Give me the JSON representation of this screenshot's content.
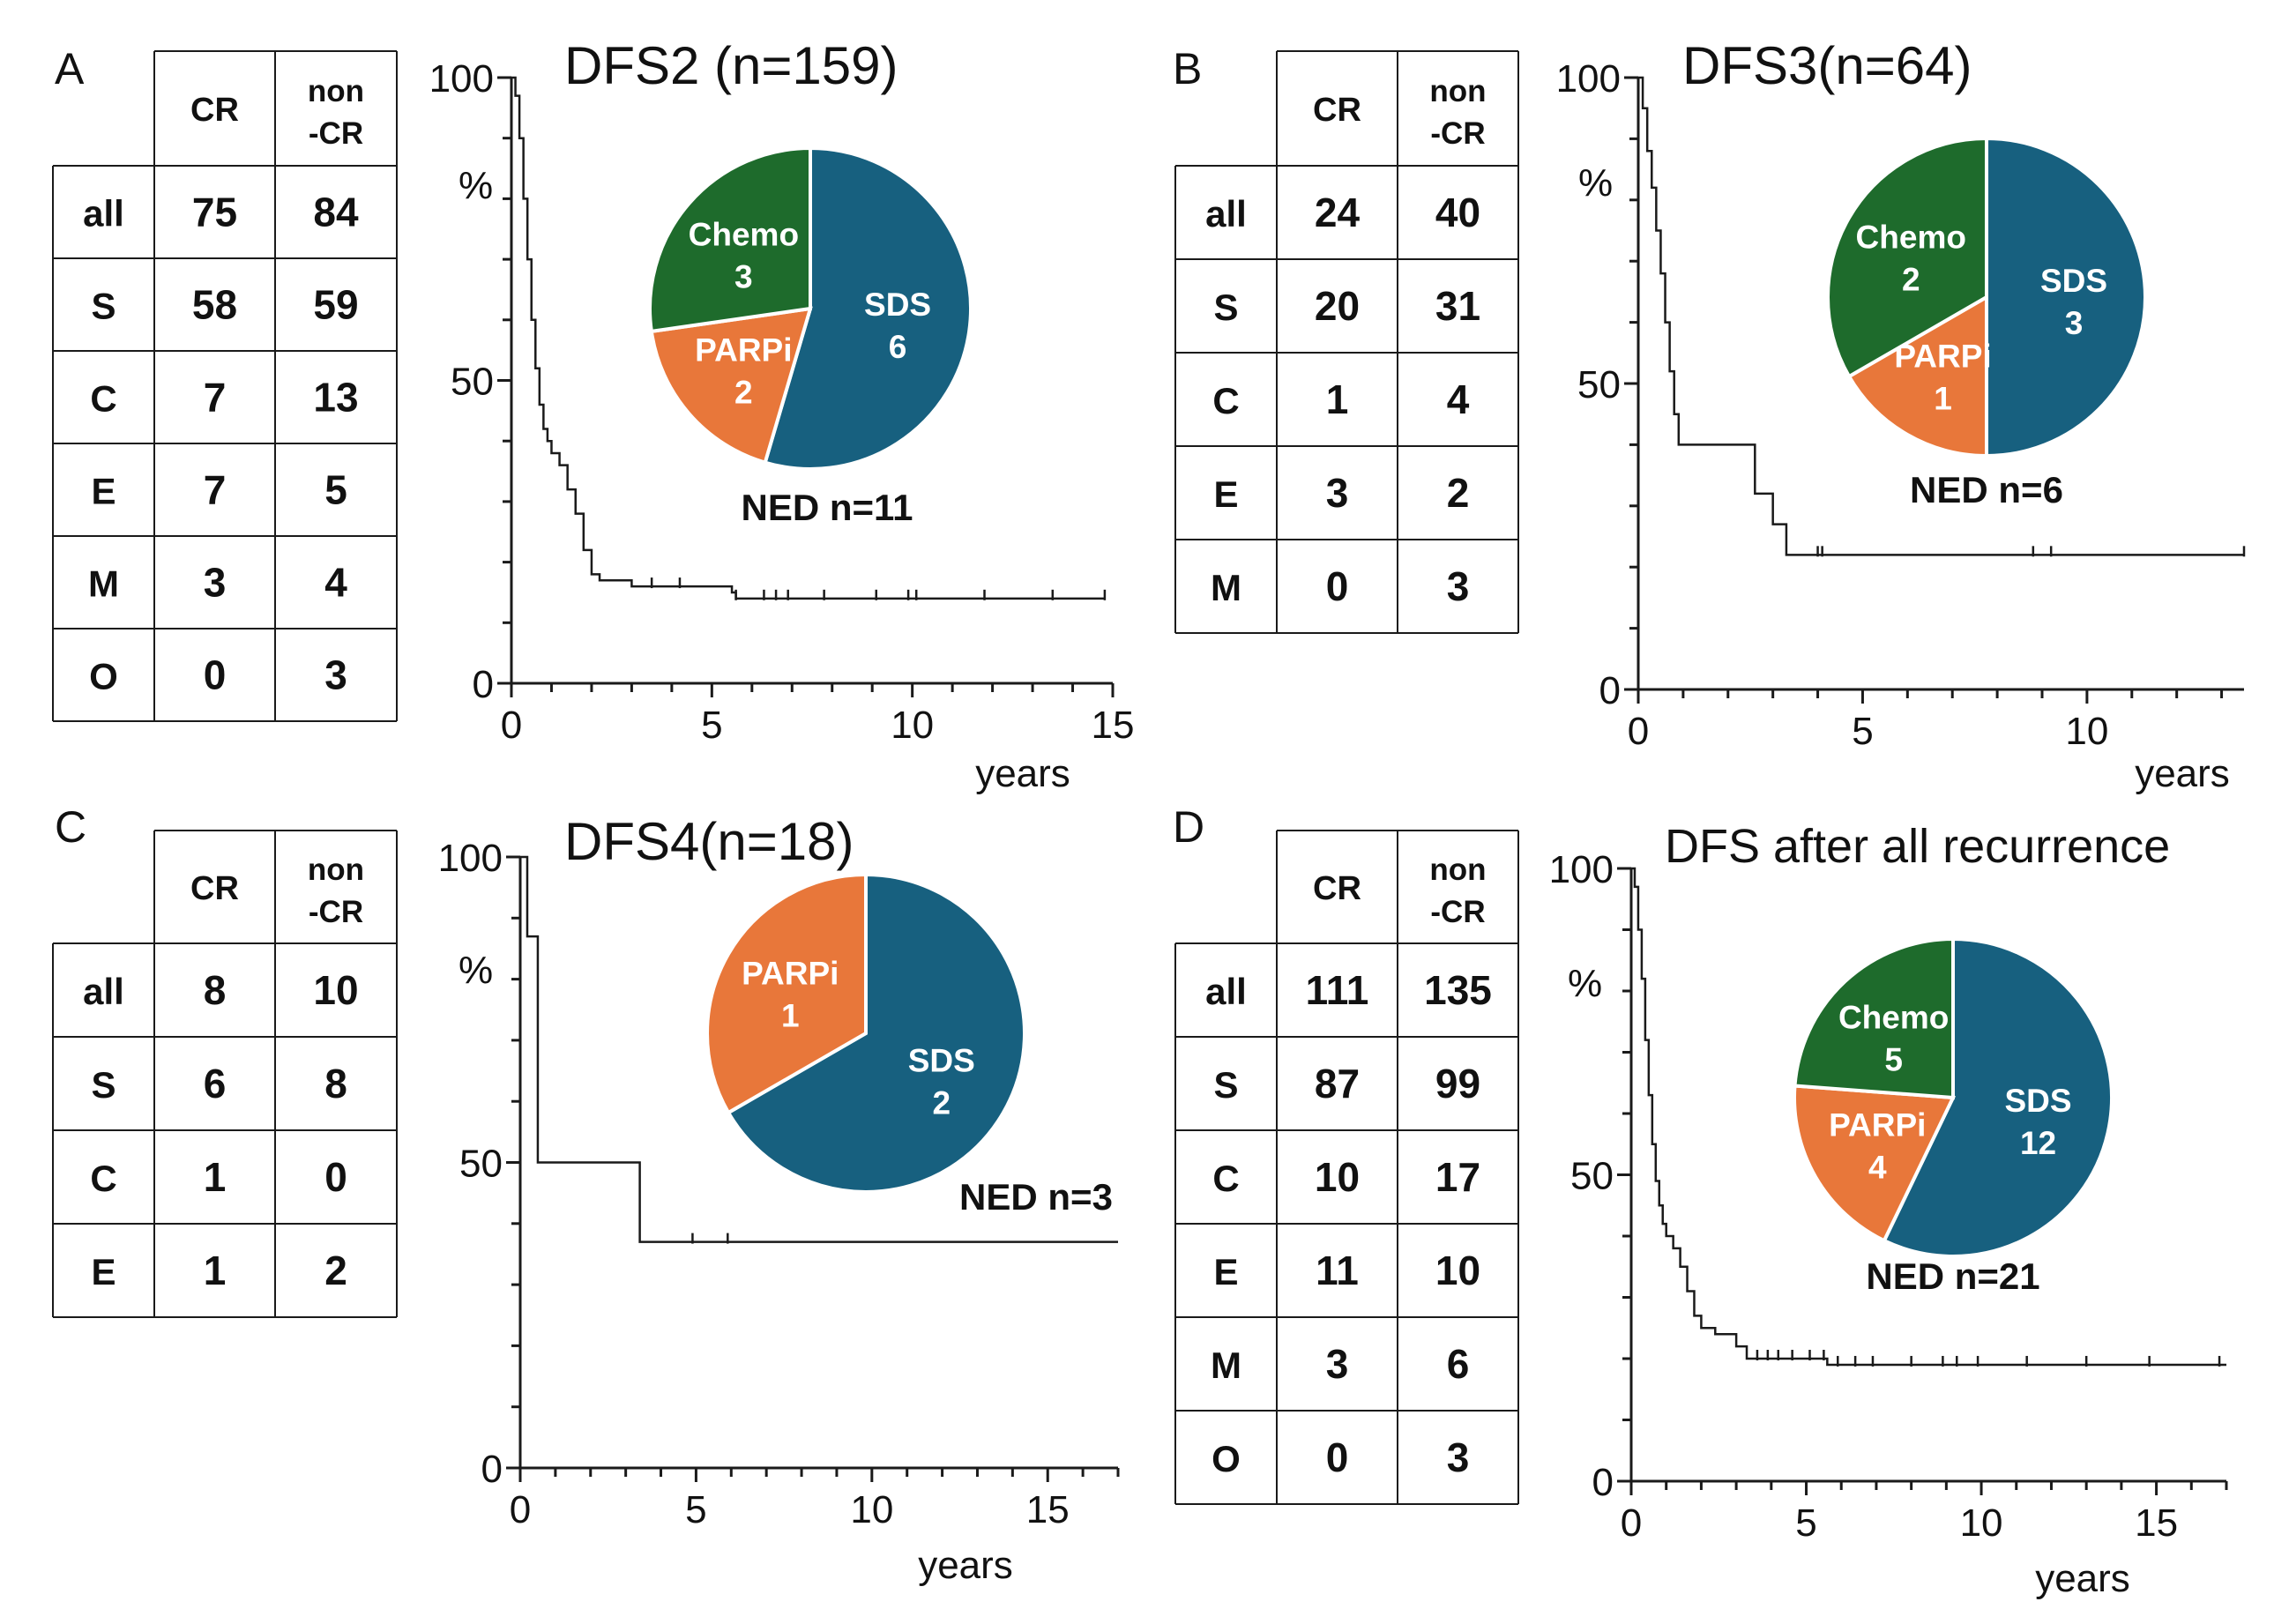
{
  "figure": {
    "colors": {
      "sds": "#17607F",
      "parpi": "#E8773A",
      "chemo": "#1E6B2C",
      "line": "#1a1a1a"
    }
  },
  "panels": [
    {
      "letter": "A",
      "table": {
        "headers": [
          "",
          "CR",
          "non\n-CR"
        ],
        "rows": [
          [
            "all",
            "75",
            "84"
          ],
          [
            "S",
            "58",
            "59"
          ],
          [
            "C",
            "7",
            "13"
          ],
          [
            "E",
            "7",
            "5"
          ],
          [
            "M",
            "3",
            "4"
          ],
          [
            "O",
            "0",
            "3"
          ]
        ]
      },
      "chart_data": {
        "type": "line",
        "subtype": "kaplan-meier",
        "title": "DFS2 (n=159)",
        "xlabel": "years",
        "ylabel": "%",
        "xlim": [
          0,
          15
        ],
        "ylim": [
          0,
          100
        ],
        "x_ticks": [
          0,
          5,
          10,
          15
        ],
        "y_ticks": [
          0,
          50,
          100
        ],
        "steps": [
          [
            0,
            100
          ],
          [
            0.1,
            97
          ],
          [
            0.2,
            90
          ],
          [
            0.3,
            80
          ],
          [
            0.4,
            70
          ],
          [
            0.5,
            60
          ],
          [
            0.6,
            52
          ],
          [
            0.7,
            46
          ],
          [
            0.8,
            42
          ],
          [
            0.9,
            40
          ],
          [
            1.0,
            38
          ],
          [
            1.2,
            36
          ],
          [
            1.4,
            32
          ],
          [
            1.6,
            28
          ],
          [
            1.8,
            22
          ],
          [
            2.0,
            18
          ],
          [
            2.2,
            17
          ],
          [
            3.0,
            16
          ],
          [
            3.5,
            16
          ],
          [
            5.5,
            15
          ],
          [
            5.6,
            14
          ],
          [
            14.8,
            14
          ]
        ],
        "censors": [
          [
            3.5,
            16
          ],
          [
            4.2,
            16
          ],
          [
            5.6,
            14
          ],
          [
            6.3,
            14
          ],
          [
            6.6,
            14
          ],
          [
            6.9,
            14
          ],
          [
            7.8,
            14
          ],
          [
            9.1,
            14
          ],
          [
            9.9,
            14
          ],
          [
            10.1,
            14
          ],
          [
            11.8,
            14
          ],
          [
            13.5,
            14
          ],
          [
            14.8,
            14
          ]
        ],
        "pie": {
          "slices": [
            {
              "label": "SDS",
              "value": 6,
              "color": "#17607F"
            },
            {
              "label": "PARPi",
              "value": 2,
              "color": "#E8773A"
            },
            {
              "label": "Chemo",
              "value": 3,
              "color": "#1E6B2C"
            }
          ],
          "caption": "NED n=11"
        }
      }
    },
    {
      "letter": "B",
      "table": {
        "headers": [
          "",
          "CR",
          "non\n-CR"
        ],
        "rows": [
          [
            "all",
            "24",
            "40"
          ],
          [
            "S",
            "20",
            "31"
          ],
          [
            "C",
            "1",
            "4"
          ],
          [
            "E",
            "3",
            "2"
          ],
          [
            "M",
            "0",
            "3"
          ]
        ]
      },
      "chart_data": {
        "type": "line",
        "subtype": "kaplan-meier",
        "title": "DFS3(n=64)",
        "xlabel": "years",
        "ylabel": "%",
        "xlim": [
          0,
          13.5
        ],
        "ylim": [
          0,
          100
        ],
        "x_ticks": [
          0,
          5,
          10
        ],
        "y_ticks": [
          0,
          50,
          100
        ],
        "steps": [
          [
            0,
            100
          ],
          [
            0.1,
            95
          ],
          [
            0.2,
            88
          ],
          [
            0.3,
            82
          ],
          [
            0.4,
            75
          ],
          [
            0.5,
            68
          ],
          [
            0.6,
            60
          ],
          [
            0.7,
            52
          ],
          [
            0.8,
            45
          ],
          [
            0.9,
            40
          ],
          [
            2.5,
            40
          ],
          [
            2.6,
            32
          ],
          [
            3.0,
            27
          ],
          [
            3.3,
            22
          ],
          [
            13.5,
            22
          ]
        ],
        "censors": [
          [
            4.0,
            22
          ],
          [
            4.1,
            22
          ],
          [
            8.8,
            22
          ],
          [
            9.2,
            22
          ],
          [
            13.5,
            22
          ]
        ],
        "pie": {
          "slices": [
            {
              "label": "SDS",
              "value": 3,
              "color": "#17607F"
            },
            {
              "label": "PARPi",
              "value": 1,
              "color": "#E8773A"
            },
            {
              "label": "Chemo",
              "value": 2,
              "color": "#1E6B2C"
            }
          ],
          "caption": "NED n=6"
        }
      }
    },
    {
      "letter": "C",
      "table": {
        "headers": [
          "",
          "CR",
          "non\n-CR"
        ],
        "rows": [
          [
            "all",
            "8",
            "10"
          ],
          [
            "S",
            "6",
            "8"
          ],
          [
            "C",
            "1",
            "0"
          ],
          [
            "E",
            "1",
            "2"
          ]
        ]
      },
      "chart_data": {
        "type": "line",
        "subtype": "kaplan-meier",
        "title": "DFS4(n=18)",
        "xlabel": "years",
        "ylabel": "%",
        "xlim": [
          0,
          17
        ],
        "ylim": [
          0,
          100
        ],
        "x_ticks": [
          0,
          5,
          10,
          15
        ],
        "y_ticks": [
          0,
          50,
          100
        ],
        "steps": [
          [
            0,
            100
          ],
          [
            0.2,
            87
          ],
          [
            0.5,
            50
          ],
          [
            3.4,
            50
          ],
          [
            3.4,
            37
          ],
          [
            17,
            37
          ]
        ],
        "censors": [
          [
            4.9,
            37
          ],
          [
            5.9,
            37
          ]
        ],
        "pie": {
          "slices": [
            {
              "label": "SDS",
              "value": 2,
              "color": "#17607F"
            },
            {
              "label": "PARPi",
              "value": 1,
              "color": "#E8773A"
            }
          ],
          "caption": "NED n=3"
        }
      }
    },
    {
      "letter": "D",
      "table": {
        "headers": [
          "",
          "CR",
          "non\n-CR"
        ],
        "rows": [
          [
            "all",
            "111",
            "135"
          ],
          [
            "S",
            "87",
            "99"
          ],
          [
            "C",
            "10",
            "17"
          ],
          [
            "E",
            "11",
            "10"
          ],
          [
            "M",
            "3",
            "6"
          ],
          [
            "O",
            "0",
            "3"
          ]
        ]
      },
      "chart_data": {
        "type": "line",
        "subtype": "kaplan-meier",
        "title": "DFS after all recurrence",
        "xlabel": "years",
        "ylabel": "%",
        "xlim": [
          0,
          17
        ],
        "ylim": [
          0,
          100
        ],
        "x_ticks": [
          0,
          5,
          10,
          15
        ],
        "y_ticks": [
          0,
          50,
          100
        ],
        "steps": [
          [
            0,
            100
          ],
          [
            0.1,
            97
          ],
          [
            0.2,
            90
          ],
          [
            0.3,
            82
          ],
          [
            0.4,
            72
          ],
          [
            0.5,
            63
          ],
          [
            0.6,
            55
          ],
          [
            0.7,
            49
          ],
          [
            0.8,
            45
          ],
          [
            0.9,
            42
          ],
          [
            1.0,
            40
          ],
          [
            1.2,
            38
          ],
          [
            1.4,
            35
          ],
          [
            1.6,
            31
          ],
          [
            1.8,
            27
          ],
          [
            2.0,
            25
          ],
          [
            2.4,
            24
          ],
          [
            3.0,
            22
          ],
          [
            3.3,
            20
          ],
          [
            5.5,
            20
          ],
          [
            5.6,
            19
          ],
          [
            17,
            19
          ]
        ],
        "censors": [
          [
            3.6,
            20
          ],
          [
            3.9,
            20
          ],
          [
            4.2,
            20
          ],
          [
            4.6,
            20
          ],
          [
            5.1,
            20
          ],
          [
            5.5,
            20
          ],
          [
            5.9,
            19
          ],
          [
            6.4,
            19
          ],
          [
            6.9,
            19
          ],
          [
            8.0,
            19
          ],
          [
            8.9,
            19
          ],
          [
            9.3,
            19
          ],
          [
            9.9,
            19
          ],
          [
            11.3,
            19
          ],
          [
            13.0,
            19
          ],
          [
            14.8,
            19
          ],
          [
            16.8,
            19
          ]
        ],
        "pie": {
          "slices": [
            {
              "label": "SDS",
              "value": 12,
              "color": "#17607F"
            },
            {
              "label": "PARPi",
              "value": 4,
              "color": "#E8773A"
            },
            {
              "label": "Chemo",
              "value": 5,
              "color": "#1E6B2C"
            }
          ],
          "caption": "NED n=21"
        }
      }
    }
  ]
}
